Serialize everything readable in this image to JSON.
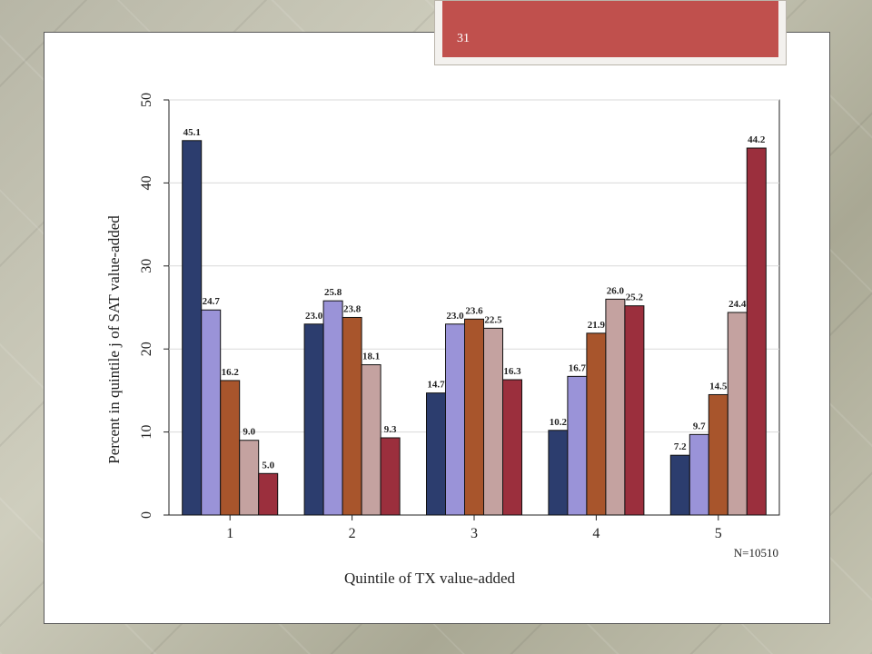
{
  "slide": {
    "page_number": "31"
  },
  "colors": {
    "series": [
      "#2c3d6e",
      "#9a93d8",
      "#a8552c",
      "#c4a2a0",
      "#9b2f3d"
    ]
  },
  "chart_data": {
    "type": "bar",
    "title": "",
    "xlabel": "Quintile of TX value-added",
    "ylabel": "Percent in quintile j of SAT value-added",
    "categories": [
      "1",
      "2",
      "3",
      "4",
      "5"
    ],
    "ylim": [
      0,
      50
    ],
    "yticks": [
      0,
      10,
      20,
      30,
      40,
      50
    ],
    "grid": true,
    "note": "N=10510",
    "series": [
      {
        "values": [
          45.1,
          23.0,
          14.7,
          10.2,
          7.2
        ]
      },
      {
        "values": [
          24.7,
          25.8,
          23.0,
          16.7,
          9.7
        ]
      },
      {
        "values": [
          16.2,
          23.8,
          23.6,
          21.9,
          14.5
        ]
      },
      {
        "values": [
          9.0,
          18.1,
          22.5,
          26.0,
          24.4
        ]
      },
      {
        "values": [
          5.0,
          9.3,
          16.3,
          25.2,
          44.2
        ]
      }
    ],
    "data_labels": [
      [
        "45.1",
        "23.0",
        "14.7",
        "10.2",
        "7.2"
      ],
      [
        "24.7",
        "25.8",
        "23.0",
        "16.7",
        "9.7"
      ],
      [
        "16.2",
        "23.8",
        "23.6",
        "21.9",
        "14.5"
      ],
      [
        "9.0",
        "18.1",
        "22.5",
        "26.0",
        "24.4"
      ],
      [
        "5.0",
        "9.3",
        "16.3",
        "25.2",
        "44.2"
      ]
    ]
  }
}
